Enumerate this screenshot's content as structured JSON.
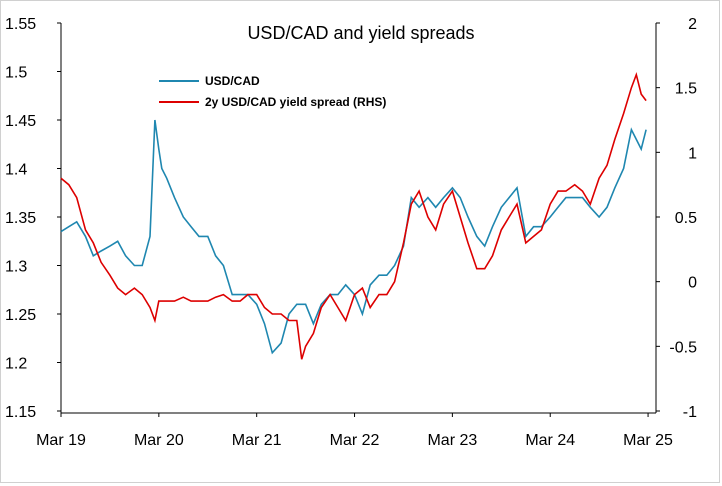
{
  "chart_data": {
    "type": "line",
    "title": "USD/CAD and yield spreads",
    "x_tick_labels": [
      "Mar 19",
      "Mar 20",
      "Mar 21",
      "Mar 22",
      "Mar 23",
      "Mar 24",
      "Mar 25"
    ],
    "x_range": [
      2019.17,
      2025.2
    ],
    "y_left": {
      "ylim": [
        1.15,
        1.55
      ],
      "ticks": [
        "1.15",
        "1.2",
        "1.25",
        "1.3",
        "1.35",
        "1.4",
        "1.45",
        "1.5",
        "1.55"
      ]
    },
    "y_right": {
      "ylim": [
        -1,
        2
      ],
      "ticks": [
        "-1",
        "-0.5",
        "0",
        "0.5",
        "1",
        "1.5",
        "2"
      ]
    },
    "legend_position": "top-left",
    "grid": false,
    "series": [
      {
        "name": "USD/CAD",
        "axis": "left",
        "color": "#1f87b0",
        "x": [
          2019.17,
          2019.25,
          2019.33,
          2019.42,
          2019.5,
          2019.58,
          2019.67,
          2019.75,
          2019.83,
          2019.92,
          2020.0,
          2020.08,
          2020.13,
          2020.17,
          2020.2,
          2020.25,
          2020.33,
          2020.42,
          2020.5,
          2020.58,
          2020.67,
          2020.75,
          2020.83,
          2020.92,
          2021.0,
          2021.08,
          2021.17,
          2021.25,
          2021.33,
          2021.42,
          2021.5,
          2021.58,
          2021.67,
          2021.75,
          2021.83,
          2021.92,
          2022.0,
          2022.08,
          2022.17,
          2022.25,
          2022.33,
          2022.42,
          2022.5,
          2022.58,
          2022.67,
          2022.75,
          2022.83,
          2022.92,
          2023.0,
          2023.08,
          2023.17,
          2023.25,
          2023.33,
          2023.42,
          2023.5,
          2023.58,
          2023.67,
          2023.75,
          2023.83,
          2023.92,
          2024.0,
          2024.08,
          2024.17,
          2024.25,
          2024.33,
          2024.42,
          2024.5,
          2024.58,
          2024.67,
          2024.75,
          2024.83,
          2024.92,
          2025.0,
          2025.05,
          2025.1,
          2025.15
        ],
        "values": [
          1.335,
          1.34,
          1.345,
          1.33,
          1.31,
          1.315,
          1.32,
          1.325,
          1.31,
          1.3,
          1.3,
          1.33,
          1.45,
          1.42,
          1.4,
          1.39,
          1.37,
          1.35,
          1.34,
          1.33,
          1.33,
          1.31,
          1.3,
          1.27,
          1.27,
          1.27,
          1.26,
          1.24,
          1.21,
          1.22,
          1.25,
          1.26,
          1.26,
          1.24,
          1.26,
          1.27,
          1.27,
          1.28,
          1.27,
          1.25,
          1.28,
          1.29,
          1.29,
          1.3,
          1.32,
          1.37,
          1.36,
          1.37,
          1.36,
          1.37,
          1.38,
          1.37,
          1.35,
          1.33,
          1.32,
          1.34,
          1.36,
          1.37,
          1.38,
          1.33,
          1.34,
          1.34,
          1.35,
          1.36,
          1.37,
          1.37,
          1.37,
          1.36,
          1.35,
          1.36,
          1.38,
          1.4,
          1.44,
          1.43,
          1.42,
          1.44
        ]
      },
      {
        "name": "2y USD/CAD yield spread (RHS)",
        "axis": "right",
        "color": "#dd0000",
        "x": [
          2019.17,
          2019.25,
          2019.33,
          2019.42,
          2019.5,
          2019.58,
          2019.67,
          2019.75,
          2019.83,
          2019.92,
          2020.0,
          2020.08,
          2020.13,
          2020.17,
          2020.25,
          2020.33,
          2020.42,
          2020.5,
          2020.58,
          2020.67,
          2020.75,
          2020.83,
          2020.92,
          2021.0,
          2021.08,
          2021.17,
          2021.25,
          2021.33,
          2021.42,
          2021.5,
          2021.58,
          2021.63,
          2021.67,
          2021.75,
          2021.83,
          2021.92,
          2022.0,
          2022.08,
          2022.17,
          2022.25,
          2022.33,
          2022.42,
          2022.5,
          2022.58,
          2022.67,
          2022.75,
          2022.83,
          2022.92,
          2023.0,
          2023.08,
          2023.17,
          2023.25,
          2023.33,
          2023.42,
          2023.5,
          2023.58,
          2023.67,
          2023.75,
          2023.83,
          2023.92,
          2024.0,
          2024.08,
          2024.17,
          2024.25,
          2024.33,
          2024.42,
          2024.5,
          2024.58,
          2024.67,
          2024.75,
          2024.83,
          2024.92,
          2025.0,
          2025.05,
          2025.1,
          2025.15
        ],
        "values": [
          0.8,
          0.75,
          0.65,
          0.4,
          0.3,
          0.15,
          0.05,
          -0.05,
          -0.1,
          -0.05,
          -0.1,
          -0.2,
          -0.3,
          -0.15,
          -0.15,
          -0.15,
          -0.12,
          -0.15,
          -0.15,
          -0.15,
          -0.12,
          -0.1,
          -0.15,
          -0.15,
          -0.1,
          -0.1,
          -0.2,
          -0.25,
          -0.25,
          -0.3,
          -0.3,
          -0.6,
          -0.5,
          -0.4,
          -0.2,
          -0.1,
          -0.2,
          -0.3,
          -0.1,
          -0.05,
          -0.2,
          -0.1,
          -0.1,
          0.0,
          0.3,
          0.6,
          0.7,
          0.5,
          0.4,
          0.6,
          0.7,
          0.5,
          0.3,
          0.1,
          0.1,
          0.2,
          0.4,
          0.5,
          0.6,
          0.3,
          0.35,
          0.4,
          0.6,
          0.7,
          0.7,
          0.75,
          0.7,
          0.6,
          0.8,
          0.9,
          1.1,
          1.3,
          1.5,
          1.6,
          1.45,
          1.4
        ]
      }
    ]
  }
}
